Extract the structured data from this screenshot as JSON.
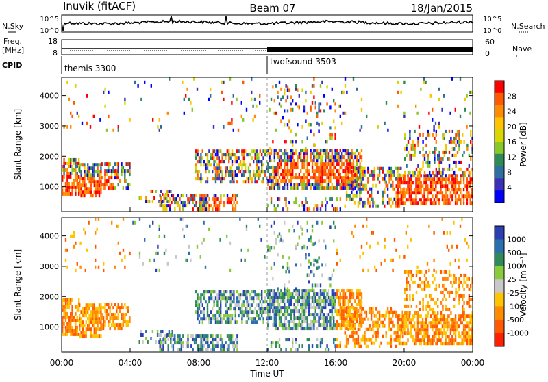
{
  "header": {
    "station": "Inuvik (fitACF)",
    "beam": "Beam 07",
    "date": "18/Jan/2015"
  },
  "noise_panel": {
    "left_label": "N.Sky",
    "right_label": "N.Search",
    "left_ticks": [
      "10^5",
      "10^0"
    ],
    "right_ticks": [
      "10^5",
      "10^0"
    ]
  },
  "freq_panel": {
    "left_label_1": "Freq.",
    "left_label_2": "[MHz]",
    "left_ticks": [
      "18",
      "8"
    ],
    "right_label": "Nave",
    "right_ticks": [
      "60",
      "0"
    ]
  },
  "cpid": {
    "label": "CPID",
    "programs": [
      {
        "name": "themis 3300",
        "start_hour": 0
      },
      {
        "name": "twofsound 3503",
        "start_hour": 12
      }
    ]
  },
  "time_axis": {
    "label": "Time UT",
    "ticks": [
      "00:00",
      "04:00",
      "08:00",
      "12:00",
      "16:00",
      "20:00",
      "00:00"
    ]
  },
  "chart_data": [
    {
      "type": "heatmap",
      "quantity": "power",
      "ylabel": "Slant Range [km]",
      "x_range_hours": [
        0,
        24
      ],
      "ylim": [
        180,
        4600
      ],
      "y_ticks": [
        1000,
        2000,
        3000,
        4000
      ],
      "colorbar": {
        "label": "Power [dB]",
        "ticks": [
          "28",
          "24",
          "20",
          "16",
          "12",
          "8",
          "4"
        ],
        "colors": [
          "#ff0000",
          "#ff5a00",
          "#ff8c00",
          "#ffc400",
          "#d8d800",
          "#88c828",
          "#2e8b57",
          "#2e6fa0",
          "#3c2fb8",
          "#0000ff"
        ]
      }
    },
    {
      "type": "heatmap",
      "quantity": "velocity",
      "ylabel": "Slant Range [km]",
      "x_range_hours": [
        0,
        24
      ],
      "ylim": [
        180,
        4600
      ],
      "y_ticks": [
        1000,
        2000,
        3000,
        4000
      ],
      "colorbar": {
        "label": "Velocity [m s⁻¹]",
        "ticks": [
          "1000",
          "500",
          "100",
          "25",
          "-25",
          "-100",
          "-500",
          "-1000"
        ],
        "colors": [
          "#2a3fb0",
          "#2a70b0",
          "#2e8b57",
          "#8acb3c",
          "#c8c8c8",
          "#ffc400",
          "#ff8c00",
          "#ff5a00",
          "#ff2000"
        ]
      }
    }
  ]
}
